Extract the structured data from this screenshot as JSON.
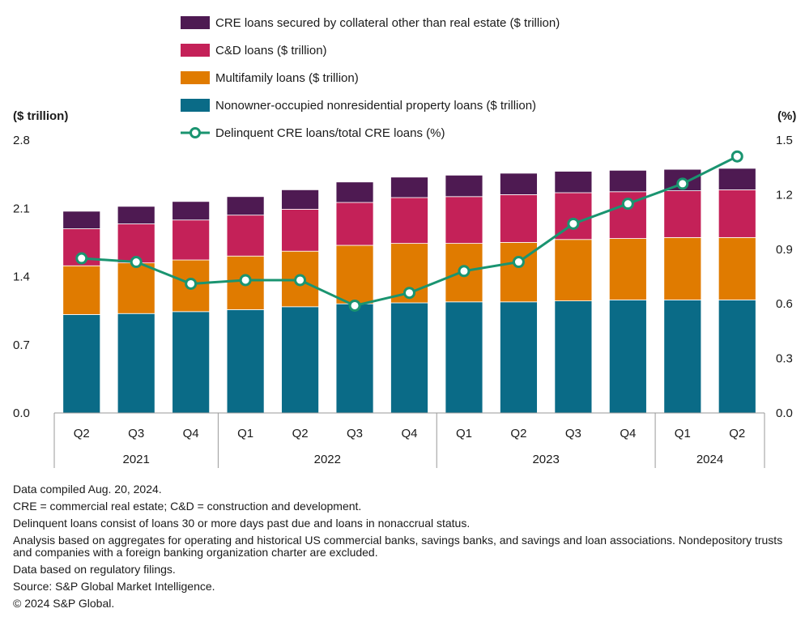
{
  "chart_data": {
    "type": "bar",
    "stacked": true,
    "categories": [
      "Q2",
      "Q3",
      "Q4",
      "Q1",
      "Q2",
      "Q3",
      "Q4",
      "Q1",
      "Q2",
      "Q3",
      "Q4",
      "Q1",
      "Q2"
    ],
    "years": [
      {
        "label": "2021",
        "count": 3
      },
      {
        "label": "2022",
        "count": 4
      },
      {
        "label": "2023",
        "count": 4
      },
      {
        "label": "2024",
        "count": 2
      }
    ],
    "series": [
      {
        "name": "Nonowner-occupied nonresidential property loans ($ trillion)",
        "color": "#0a6b87",
        "values": [
          1.01,
          1.02,
          1.04,
          1.06,
          1.09,
          1.12,
          1.13,
          1.14,
          1.14,
          1.15,
          1.16,
          1.16,
          1.16
        ]
      },
      {
        "name": "Multifamily loans ($ trillion)",
        "color": "#e07b00",
        "values": [
          0.5,
          0.52,
          0.53,
          0.55,
          0.57,
          0.6,
          0.61,
          0.6,
          0.61,
          0.63,
          0.63,
          0.64,
          0.64
        ]
      },
      {
        "name": "C&D loans ($ trillion)",
        "color": "#c42158",
        "values": [
          0.38,
          0.4,
          0.41,
          0.42,
          0.43,
          0.44,
          0.47,
          0.48,
          0.49,
          0.48,
          0.48,
          0.48,
          0.49
        ]
      },
      {
        "name": "CRE loans secured by collateral other than real estate ($ trillion)",
        "color": "#4e1a52",
        "values": [
          0.18,
          0.18,
          0.19,
          0.19,
          0.2,
          0.21,
          0.21,
          0.22,
          0.22,
          0.22,
          0.22,
          0.22,
          0.22
        ]
      }
    ],
    "line_series": {
      "name": "Delinquent CRE loans/total CRE loans (%)",
      "color": "#1a9470",
      "values": [
        0.85,
        0.83,
        0.71,
        0.73,
        0.73,
        0.59,
        0.66,
        0.78,
        0.83,
        1.04,
        1.15,
        1.26,
        1.41
      ]
    },
    "y_left": {
      "label": "($ trillion)",
      "min": 0,
      "max": 2.8,
      "ticks": [
        "0.0",
        "0.7",
        "1.4",
        "2.1",
        "2.8"
      ]
    },
    "y_right": {
      "label": "(%)",
      "min": 0,
      "max": 1.5,
      "ticks": [
        "0.0",
        "0.3",
        "0.6",
        "0.9",
        "1.2",
        "1.5"
      ]
    },
    "legend_order": [
      3,
      2,
      1,
      0
    ],
    "legend_position": "top"
  },
  "notes": [
    "Data compiled Aug. 20, 2024.",
    "CRE = commercial real estate; C&D = construction and development.",
    "Delinquent loans consist of loans 30 or more days past due and loans in nonaccrual status.",
    "Analysis based on aggregates for operating and historical US commercial banks, savings banks, and savings and loan associations. Nondepository trusts and companies with a foreign banking organization charter are excluded.",
    "Data based on regulatory filings.",
    "Source: S&P Global Market Intelligence.",
    "© 2024 S&P Global."
  ]
}
